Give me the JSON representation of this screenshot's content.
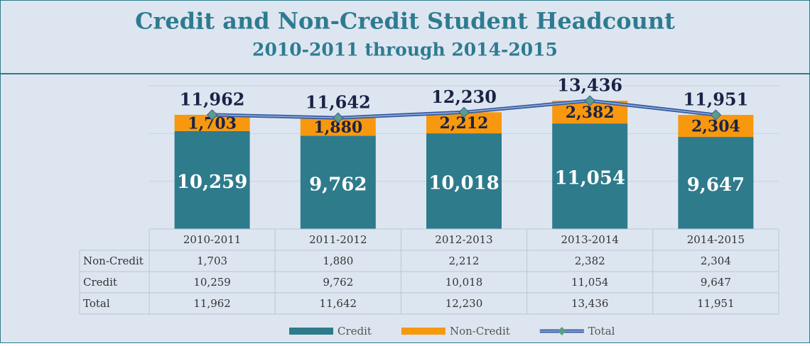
{
  "chart_data": {
    "type": "bar",
    "stacked": true,
    "title": "Credit and Non-Credit Student Headcount",
    "subtitle": "2010-2011 through 2014-2015",
    "categories": [
      "2010-2011",
      "2011-2012",
      "2012-2013",
      "2013-2014",
      "2014-2015"
    ],
    "series": [
      {
        "name": "Credit",
        "type": "bar",
        "color": "#2e7b8c",
        "values": [
          10259,
          9762,
          10018,
          11054,
          9647
        ],
        "value_labels": [
          "10,259",
          "9,762",
          "10,018",
          "11,054",
          "9,647"
        ]
      },
      {
        "name": "Non-Credit",
        "type": "bar",
        "color": "#f7980e",
        "values": [
          1703,
          1880,
          2212,
          2382,
          2304
        ],
        "value_labels": [
          "1,703",
          "1,880",
          "2,212",
          "2,382",
          "2,304"
        ]
      },
      {
        "name": "Total",
        "type": "line",
        "color": "#3a5ba0",
        "values": [
          11962,
          11642,
          12230,
          13436,
          11951
        ],
        "value_labels": [
          "11,962",
          "11,642",
          "12,230",
          "13,436",
          "11,951"
        ]
      }
    ],
    "ylim": [
      0,
      15000
    ],
    "yticks": [
      0,
      5000,
      10000,
      15000
    ],
    "grid": true,
    "legend": "bottom"
  }
}
